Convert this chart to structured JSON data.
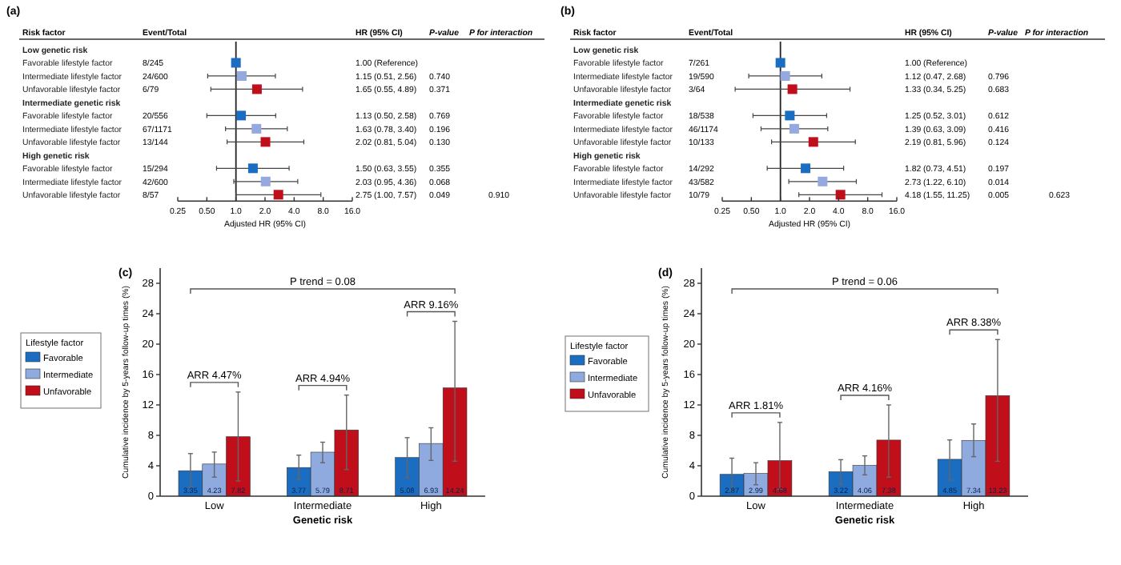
{
  "chart_data": [
    {
      "type": "scatter",
      "orientation": "horizontal",
      "title": "(a)",
      "ylabel": "Risk factor",
      "xlabel": "Adjusted HR (95% CI)",
      "log": "x",
      "marker": "square",
      "categories": [
        "Low genetic risk",
        "Favorable lifestyle factor",
        "Intermediate lifestyle factor",
        "Unfavorable lifestyle factor",
        "Intermediate genetic risk",
        "Favorable lifestyle factor",
        "Intermediate lifestyle factor",
        "Unfavorable lifestyle factor",
        "High genetic risk",
        "Favorable lifestyle factor",
        "Intermediate lifestyle factor",
        "Unfavorable lifestyle factor"
      ],
      "values": [
        null,
        1.0,
        1.15,
        1.65,
        null,
        1.13,
        1.63,
        2.02,
        null,
        1.5,
        2.03,
        2.75
      ],
      "colors": [
        null,
        "#1a6dc1",
        "#93a9e0",
        "#c00f1a",
        null,
        "#1a6dc1",
        "#93a9e0",
        "#c00f1a",
        null,
        "#1a6dc1",
        "#93a9e0",
        "#c00f1a"
      ],
      "errors": [
        null,
        null,
        [
          0.51,
          2.56
        ],
        [
          0.55,
          4.89
        ],
        null,
        [
          0.5,
          2.58
        ],
        [
          0.78,
          3.4
        ],
        [
          0.81,
          5.04
        ],
        null,
        [
          0.63,
          3.55
        ],
        [
          0.95,
          4.36
        ],
        [
          1.0,
          7.57
        ]
      ],
      "value_labels": [
        null,
        "1.00 (Reference)",
        "1.15 (0.51, 2.56)",
        "1.65 (0.55, 4.89)",
        null,
        "1.13 (0.50, 2.58)",
        "1.63 (0.78, 3.40)",
        "2.02 (0.81, 5.04)",
        null,
        "1.50 (0.63, 3.55)",
        "2.03 (0.95, 4.36)",
        "2.75 (1.00, 7.57)"
      ],
      "xlim": [
        0.25,
        16
      ],
      "xticks": [
        0.25,
        {
          "value": 0.5,
          "label": "0.50"
        },
        {
          "value": 1,
          "label": "1.0"
        },
        {
          "value": 2,
          "label": "2.0"
        },
        {
          "value": 4,
          "label": "4.0"
        },
        {
          "value": 8,
          "label": "8.0"
        },
        {
          "value": 16,
          "label": "16.0"
        }
      ],
      "ref_lines": [
        {
          "axis": "x",
          "value": 1
        }
      ],
      "annotations": [
        "Event/Total",
        "HR (95% CI)",
        "P-value",
        "P for interaction",
        "8/245",
        "24/600",
        "6/79",
        "20/556",
        "67/1171",
        "13/144",
        "15/294",
        "42/600",
        "8/57",
        "0.740",
        "0.371",
        "0.769",
        "0.196",
        "0.130",
        "0.355",
        "0.068",
        "0.049",
        "0.910"
      ]
    },
    {
      "type": "scatter",
      "orientation": "horizontal",
      "title": "(b)",
      "ylabel": "Risk factor",
      "xlabel": "Adjusted HR (95% CI)",
      "log": "x",
      "marker": "square",
      "categories": [
        "Low genetic risk",
        "Favorable lifestyle factor",
        "Intermediate lifestyle factor",
        "Unfavorable lifestyle factor",
        "Intermediate genetic risk",
        "Favorable lifestyle factor",
        "Intermediate lifestyle factor",
        "Unfavorable lifestyle factor",
        "High genetic risk",
        "Favorable lifestyle factor",
        "Intermediate lifestyle factor",
        "Unfavorable lifestyle factor"
      ],
      "values": [
        null,
        1.0,
        1.12,
        1.33,
        null,
        1.25,
        1.39,
        2.19,
        null,
        1.82,
        2.73,
        4.18
      ],
      "colors": [
        null,
        "#1a6dc1",
        "#93a9e0",
        "#c00f1a",
        null,
        "#1a6dc1",
        "#93a9e0",
        "#c00f1a",
        null,
        "#1a6dc1",
        "#93a9e0",
        "#c00f1a"
      ],
      "errors": [
        null,
        null,
        [
          0.47,
          2.68
        ],
        [
          0.34,
          5.25
        ],
        null,
        [
          0.52,
          3.01
        ],
        [
          0.63,
          3.09
        ],
        [
          0.81,
          5.96
        ],
        null,
        [
          0.73,
          4.51
        ],
        [
          1.22,
          6.1
        ],
        [
          1.55,
          11.25
        ]
      ],
      "value_labels": [
        null,
        "1.00 (Reference)",
        "1.12 (0.47, 2.68)",
        "1.33 (0.34, 5.25)",
        null,
        "1.25 (0.52, 3.01)",
        "1.39 (0.63, 3.09)",
        "2.19 (0.81, 5.96)",
        null,
        "1.82 (0.73, 4.51)",
        "2.73 (1.22, 6.10)",
        "4.18 (1.55, 11.25)"
      ],
      "xlim": [
        0.25,
        16
      ],
      "xticks": [
        0.25,
        {
          "value": 0.5,
          "label": "0.50"
        },
        {
          "value": 1,
          "label": "1.0"
        },
        {
          "value": 2,
          "label": "2.0"
        },
        {
          "value": 4,
          "label": "4.0"
        },
        {
          "value": 8,
          "label": "8.0"
        },
        {
          "value": 16,
          "label": "16.0"
        }
      ],
      "ref_lines": [
        {
          "axis": "x",
          "value": 1
        }
      ],
      "annotations": [
        "Event/Total",
        "HR (95% CI)",
        "P-value",
        "P for interaction",
        "7/261",
        "19/590",
        "3/64",
        "18/538",
        "46/1174",
        "10/133",
        "14/292",
        "43/582",
        "10/79",
        "0.796",
        "0.683",
        "0.612",
        "0.416",
        "0.124",
        "0.197",
        "0.014",
        "0.005",
        "0.623"
      ]
    },
    {
      "type": "bar",
      "title": "(c)",
      "xlabel": "Genetic risk",
      "ylabel": "Cumulative incidence by 5-years follow-up times (%)",
      "legend": "left",
      "legend_title": "Lifestyle factor",
      "data_labels": true,
      "categories": [
        "Low",
        "Intermediate",
        "High"
      ],
      "series": [
        {
          "name": "Favorable",
          "color": "#1a6dc1",
          "values": [
            3.35,
            3.77,
            5.08
          ],
          "errors": [
            [
              1.2,
              5.6
            ],
            [
              2.2,
              5.4
            ],
            [
              2.4,
              7.7
            ]
          ]
        },
        {
          "name": "Intermediate",
          "color": "#8eaadf",
          "values": [
            4.23,
            5.79,
            6.93
          ],
          "errors": [
            [
              2.5,
              5.8
            ],
            [
              4.4,
              7.1
            ],
            [
              4.7,
              9.0
            ]
          ]
        },
        {
          "name": "Unfavorable",
          "color": "#c00f1a",
          "values": [
            7.82,
            8.71,
            14.24
          ],
          "errors": [
            [
              2.0,
              13.7
            ],
            [
              3.5,
              13.3
            ],
            [
              4.6,
              23.0
            ]
          ]
        }
      ],
      "ylim": [
        0,
        30
      ],
      "yticks": [
        0,
        4,
        8,
        12,
        16,
        20,
        24,
        28
      ],
      "annotations": [
        "ARR 4.47%",
        "ARR 4.94%",
        "ARR 9.16%",
        "P trend = 0.08"
      ]
    },
    {
      "type": "bar",
      "title": "(d)",
      "xlabel": "Genetic risk",
      "ylabel": "Cumulative incidence by 5-years follow-up times (%)",
      "legend": "left",
      "legend_title": "Lifestyle factor",
      "data_labels": true,
      "categories": [
        "Low",
        "Intermediate",
        "High"
      ],
      "series": [
        {
          "name": "Favorable",
          "color": "#1a6dc1",
          "values": [
            2.87,
            3.22,
            4.85
          ],
          "errors": [
            [
              0.8,
              5.0
            ],
            [
              1.6,
              4.8
            ],
            [
              2.1,
              7.4
            ]
          ]
        },
        {
          "name": "Intermediate",
          "color": "#8eaadf",
          "values": [
            2.99,
            4.06,
            7.34
          ],
          "errors": [
            [
              1.5,
              4.4
            ],
            [
              2.8,
              5.3
            ],
            [
              5.2,
              9.5
            ]
          ]
        },
        {
          "name": "Unfavorable",
          "color": "#c00f1a",
          "values": [
            4.68,
            7.38,
            13.23
          ],
          "errors": [
            [
              0.9,
              9.7
            ],
            [
              2.5,
              12.0
            ],
            [
              4.6,
              20.6
            ]
          ]
        }
      ],
      "ylim": [
        0,
        30
      ],
      "yticks": [
        0,
        4,
        8,
        12,
        16,
        20,
        24,
        28
      ],
      "annotations": [
        "ARR 1.81%",
        "ARR 4.16%",
        "ARR 8.38%",
        "P trend = 0.06"
      ]
    }
  ]
}
